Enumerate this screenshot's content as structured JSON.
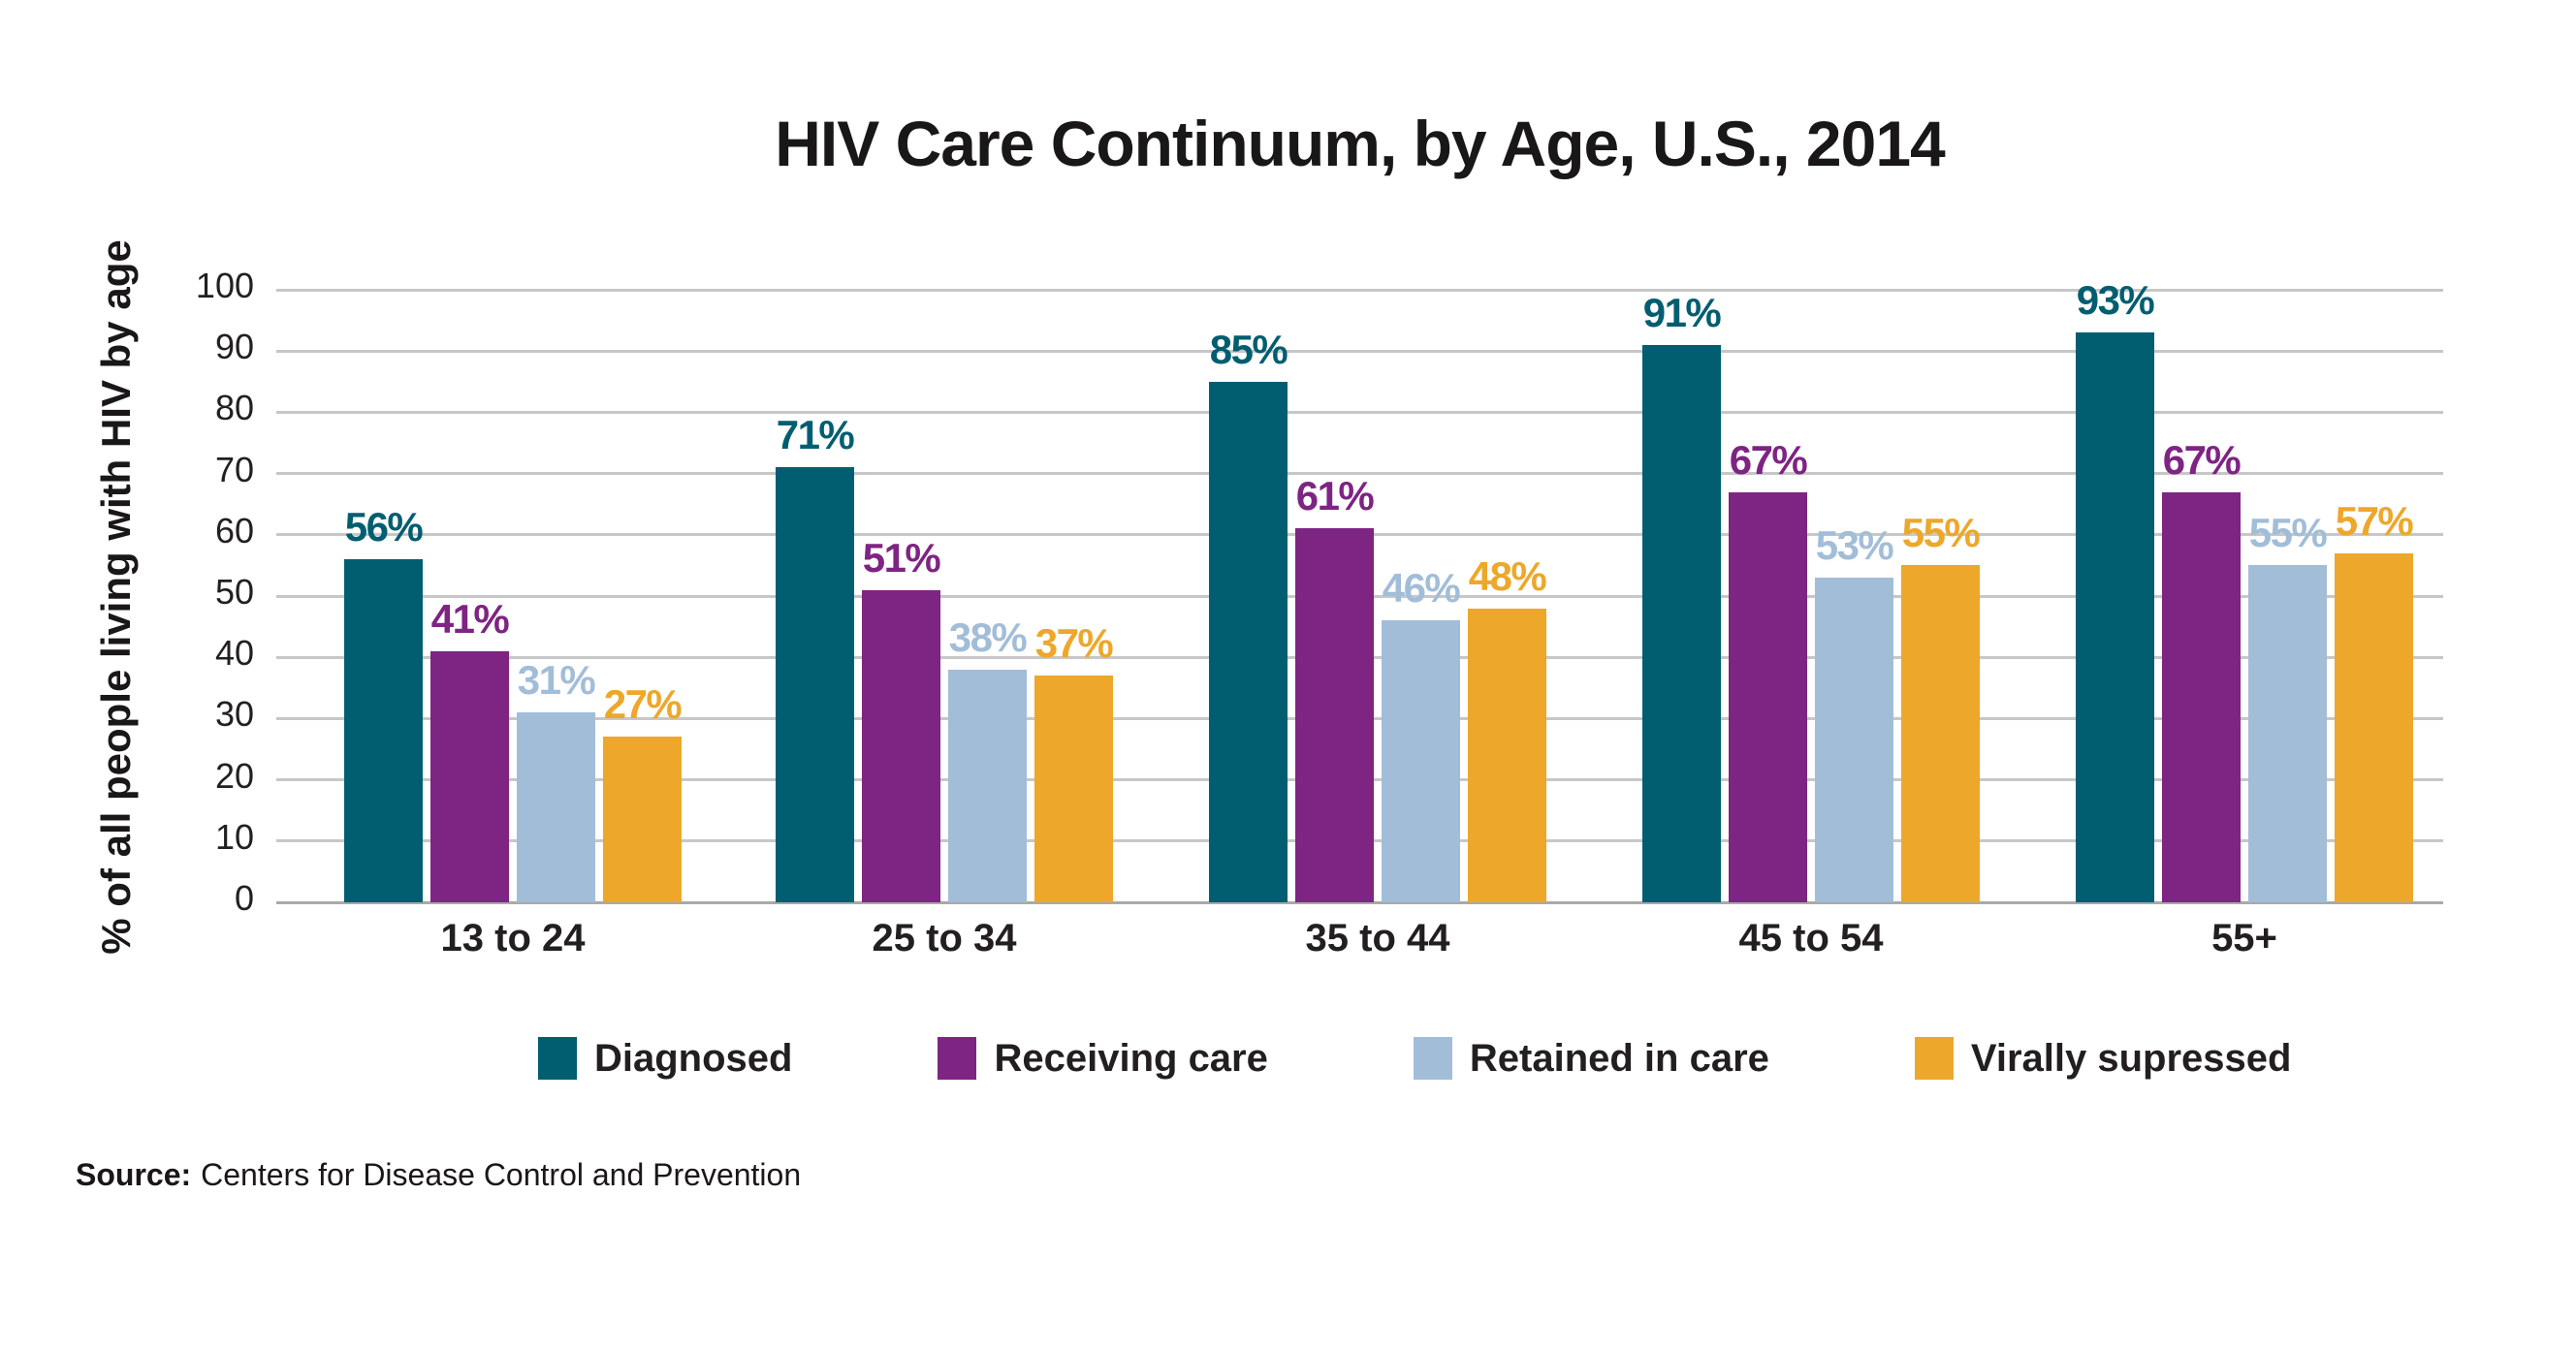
{
  "title": "HIV Care Continuum, by Age, U.S., 2014",
  "source": {
    "label": "Source:",
    "text": "Centers for Disease Control and Prevention"
  },
  "chart_data": {
    "type": "bar",
    "title": "HIV Care Continuum, by Age, U.S., 2014",
    "xlabel": "",
    "ylabel": "% of all people living with HIV by age",
    "ylim": [
      0,
      100
    ],
    "ytick_step": 10,
    "grid": true,
    "legend_position": "bottom",
    "value_suffix": "%",
    "categories": [
      "13 to 24",
      "25 to 34",
      "35 to 44",
      "45 to 54",
      "55+"
    ],
    "series": [
      {
        "name": "Diagnosed",
        "color": "#005E70",
        "values": [
          56,
          71,
          85,
          91,
          93
        ]
      },
      {
        "name": "Receiving care",
        "color": "#7E2482",
        "values": [
          41,
          51,
          61,
          67,
          67
        ]
      },
      {
        "name": "Retained in care",
        "color": "#A2BDD8",
        "values": [
          31,
          38,
          46,
          53,
          55
        ]
      },
      {
        "name": "Virally supressed",
        "color": "#EDA72A",
        "values": [
          27,
          37,
          48,
          55,
          57
        ]
      }
    ],
    "colors": {
      "grid": "#C7C7C7",
      "baseline": "#A9A9A9",
      "text": "#231F20"
    }
  }
}
